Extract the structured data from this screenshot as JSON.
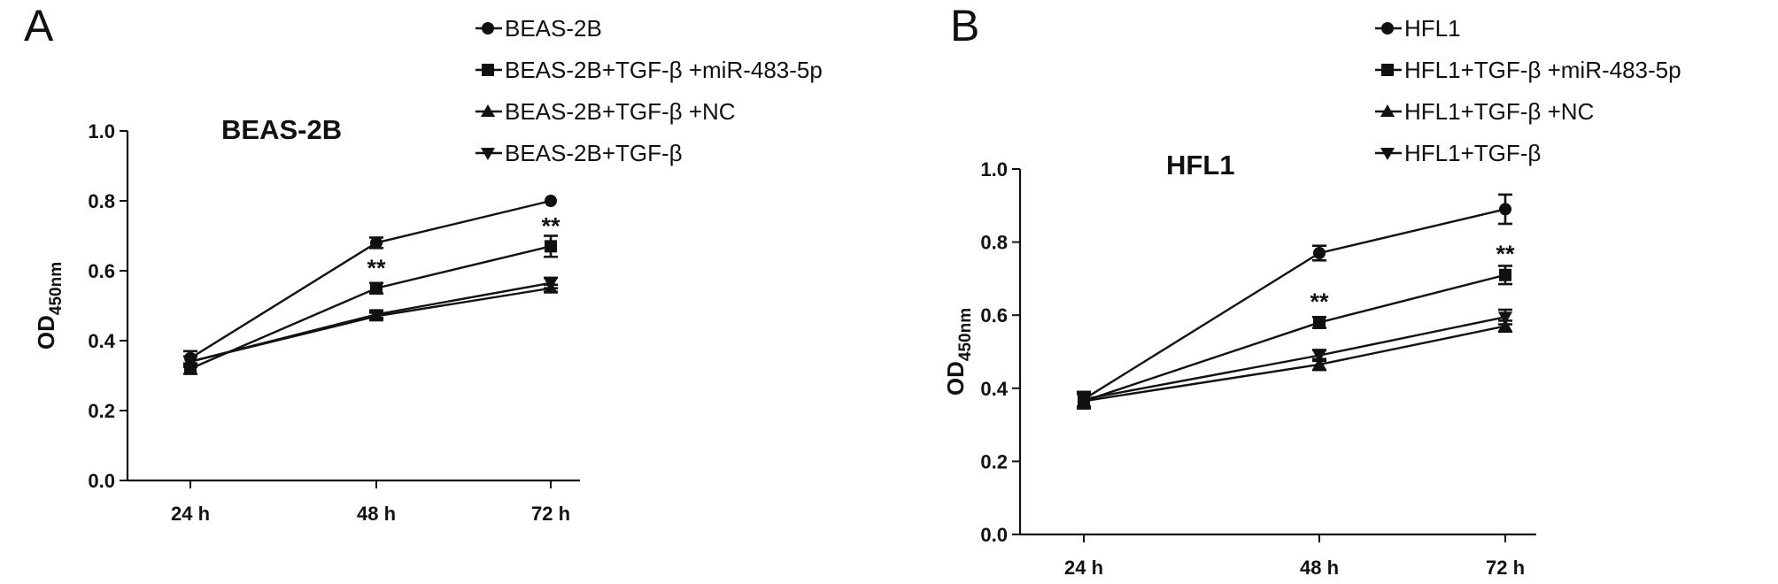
{
  "chart_data": [
    {
      "panel": "A",
      "type": "line",
      "title": "BEAS-2B",
      "xlabel": "",
      "ylabel": "OD",
      "ylabel_sub": "450nm",
      "categories": [
        "24 h",
        "48 h",
        "72 h"
      ],
      "ylim": [
        0,
        1.0
      ],
      "yticks": [
        "0.0",
        "0.2",
        "0.4",
        "0.6",
        "0.8",
        "1.0"
      ],
      "series": [
        {
          "name": "BEAS-2B",
          "marker": "circle",
          "values": [
            0.35,
            0.68,
            0.8
          ],
          "errors": [
            0.02,
            0.015,
            0.0
          ]
        },
        {
          "name": "BEAS-2B+TGF-β +miR-483-5p",
          "marker": "square",
          "values": [
            0.32,
            0.55,
            0.67
          ],
          "errors": [
            0.015,
            0.015,
            0.03
          ]
        },
        {
          "name": "BEAS-2B+TGF-β +NC",
          "marker": "triangle-up",
          "values": [
            0.34,
            0.47,
            0.55
          ],
          "errors": [
            0.015,
            0.01,
            0.01
          ]
        },
        {
          "name": "BEAS-2B+TGF-β",
          "marker": "triangle-down",
          "values": [
            0.34,
            0.475,
            0.565
          ],
          "errors": [
            0.015,
            0.01,
            0.015
          ]
        }
      ],
      "annotations": [
        {
          "text": "**",
          "category": "48 h",
          "value": 0.6
        },
        {
          "text": "**",
          "category": "72 h",
          "value": 0.72
        }
      ]
    },
    {
      "panel": "B",
      "type": "line",
      "title": "HFL1",
      "xlabel": "",
      "ylabel": "OD",
      "ylabel_sub": "450nm",
      "categories": [
        "24 h",
        "48 h",
        "72 h"
      ],
      "ylim": [
        0,
        1.0
      ],
      "yticks": [
        "0.0",
        "0.2",
        "0.4",
        "0.6",
        "0.8",
        "1.0"
      ],
      "series": [
        {
          "name": "HFL1",
          "marker": "circle",
          "values": [
            0.37,
            0.77,
            0.89
          ],
          "errors": [
            0.02,
            0.02,
            0.04
          ]
        },
        {
          "name": "HFL1+TGF-β +miR-483-5p",
          "marker": "square",
          "values": [
            0.365,
            0.58,
            0.71
          ],
          "errors": [
            0.02,
            0.015,
            0.025
          ]
        },
        {
          "name": "HFL1+TGF-β +NC",
          "marker": "triangle-up",
          "values": [
            0.365,
            0.465,
            0.57
          ],
          "errors": [
            0.02,
            0.015,
            0.015
          ]
        },
        {
          "name": "HFL1+TGF-β",
          "marker": "triangle-down",
          "values": [
            0.37,
            0.49,
            0.595
          ],
          "errors": [
            0.02,
            0.015,
            0.02
          ]
        }
      ],
      "annotations": [
        {
          "text": "**",
          "category": "48 h",
          "value": 0.63
        },
        {
          "text": "**",
          "category": "72 h",
          "value": 0.76
        }
      ]
    }
  ]
}
